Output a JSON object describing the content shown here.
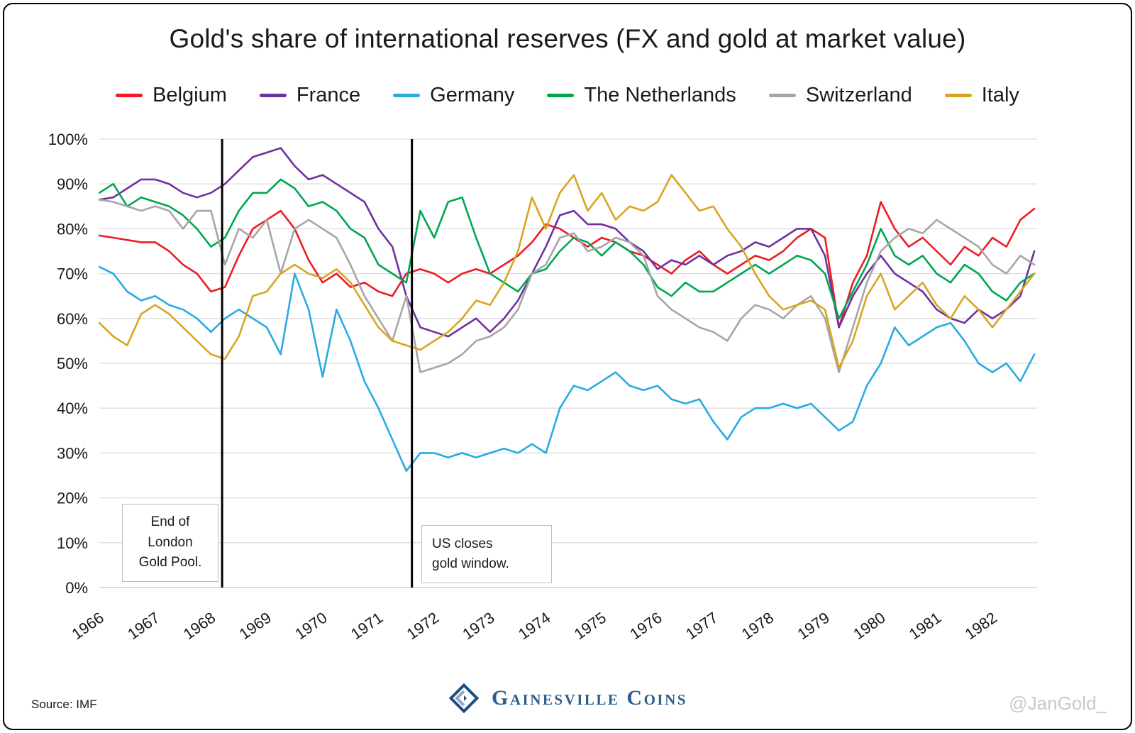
{
  "footer": {
    "source": "Source: IMF",
    "brand": "Gainesville Coins",
    "watermark": "@JanGold_"
  },
  "chart_data": {
    "type": "line",
    "title": "Gold's share of international reserves (FX and gold at market value)",
    "x_unit": "year (quarterly estimates)",
    "x_start": 1966,
    "x_step": 0.25,
    "xlim": [
      1966,
      1982.8
    ],
    "ylim": [
      0,
      100
    ],
    "grid": "horizontal",
    "legend_position": "top",
    "yticks": [
      "0%",
      "10%",
      "20%",
      "30%",
      "40%",
      "50%",
      "60%",
      "70%",
      "80%",
      "90%",
      "100%"
    ],
    "xticks": [
      1966,
      1967,
      1968,
      1969,
      1970,
      1971,
      1972,
      1973,
      1974,
      1975,
      1976,
      1977,
      1978,
      1979,
      1980,
      1981,
      1982
    ],
    "annotations": [
      {
        "x_year": 1968.2,
        "text": "End of\nLondon\nGold Pool."
      },
      {
        "x_year": 1971.6,
        "text": "US closes\ngold window."
      }
    ],
    "series": [
      {
        "name": "Belgium",
        "color": "#ed1c24",
        "values": [
          78.5,
          78,
          77.5,
          77,
          77,
          75,
          72,
          70,
          66,
          67,
          74,
          80,
          82,
          84,
          80,
          73,
          68,
          70,
          67,
          68,
          66,
          65,
          70,
          71,
          70,
          68,
          70,
          71,
          70,
          72,
          74,
          77,
          81,
          80,
          78,
          76,
          78,
          77,
          75,
          74,
          72,
          70,
          73,
          75,
          72,
          70,
          72,
          74,
          73,
          75,
          78,
          80,
          78,
          58,
          68,
          74,
          86,
          80,
          76,
          78,
          75,
          72,
          76,
          74,
          78,
          76,
          82,
          84.5
        ]
      },
      {
        "name": "France",
        "color": "#7030a0",
        "values": [
          86.5,
          87,
          89,
          91,
          91,
          90,
          88,
          87,
          88,
          90,
          93,
          96,
          97,
          98,
          94,
          91,
          92,
          90,
          88,
          86,
          80,
          76,
          65,
          58,
          57,
          56,
          58,
          60,
          57,
          60,
          64,
          70,
          76,
          83,
          84,
          81,
          81,
          80,
          77,
          75,
          71,
          73,
          72,
          74,
          72,
          74,
          75,
          77,
          76,
          78,
          80,
          80,
          74,
          58,
          65,
          70,
          74,
          70,
          68,
          66,
          62,
          60,
          59,
          62,
          60,
          62,
          65,
          75
        ]
      },
      {
        "name": "Germany",
        "color": "#29abe2",
        "values": [
          71.5,
          70,
          66,
          64,
          65,
          63,
          62,
          60,
          57,
          60,
          62,
          60,
          58,
          52,
          70,
          62,
          47,
          62,
          55,
          46,
          40,
          33,
          26,
          30,
          30,
          29,
          30,
          29,
          30,
          31,
          30,
          32,
          30,
          40,
          45,
          44,
          46,
          48,
          45,
          44,
          45,
          42,
          41,
          42,
          37,
          33,
          38,
          40,
          40,
          41,
          40,
          41,
          38,
          35,
          37,
          45,
          50,
          58,
          54,
          56,
          58,
          59,
          55,
          50,
          48,
          50,
          46,
          52
        ]
      },
      {
        "name": "The Netherlands",
        "color": "#00a651",
        "values": [
          88,
          90,
          85,
          87,
          86,
          85,
          83,
          80,
          76,
          78,
          84,
          88,
          88,
          91,
          89,
          85,
          86,
          84,
          80,
          78,
          72,
          70,
          68,
          84,
          78,
          86,
          87,
          78,
          70,
          68,
          66,
          70,
          71,
          75,
          78,
          77,
          74,
          77,
          75,
          72,
          67,
          65,
          68,
          66,
          66,
          68,
          70,
          72,
          70,
          72,
          74,
          73,
          70,
          60,
          66,
          72,
          80,
          74,
          72,
          74,
          70,
          68,
          72,
          70,
          66,
          64,
          68,
          70
        ]
      },
      {
        "name": "Switzerland",
        "color": "#a6a6a6",
        "values": [
          86.5,
          86,
          85,
          84,
          85,
          84,
          80,
          84,
          84,
          72,
          80,
          78,
          82,
          70,
          80,
          82,
          80,
          78,
          72,
          65,
          60,
          55,
          65,
          48,
          49,
          50,
          52,
          55,
          56,
          58,
          62,
          70,
          72,
          78,
          79,
          75,
          76,
          78,
          77,
          74,
          65,
          62,
          60,
          58,
          57,
          55,
          60,
          63,
          62,
          60,
          63,
          65,
          60,
          48,
          58,
          68,
          75,
          78,
          80,
          79,
          82,
          80,
          78,
          76,
          72,
          70,
          74,
          72
        ]
      },
      {
        "name": "Italy",
        "color": "#d9a521",
        "values": [
          59,
          56,
          54,
          61,
          63,
          61,
          58,
          55,
          52,
          51,
          56,
          65,
          66,
          70,
          72,
          70,
          69,
          71,
          68,
          63,
          58,
          55,
          54,
          53,
          55,
          57,
          60,
          64,
          63,
          68,
          75,
          87,
          80,
          88,
          92,
          84,
          88,
          82,
          85,
          84,
          86,
          92,
          88,
          84,
          85,
          80,
          76,
          70,
          65,
          62,
          63,
          64,
          62,
          49,
          55,
          65,
          70,
          62,
          65,
          68,
          63,
          60,
          65,
          62,
          58,
          62,
          66,
          70
        ]
      }
    ]
  }
}
